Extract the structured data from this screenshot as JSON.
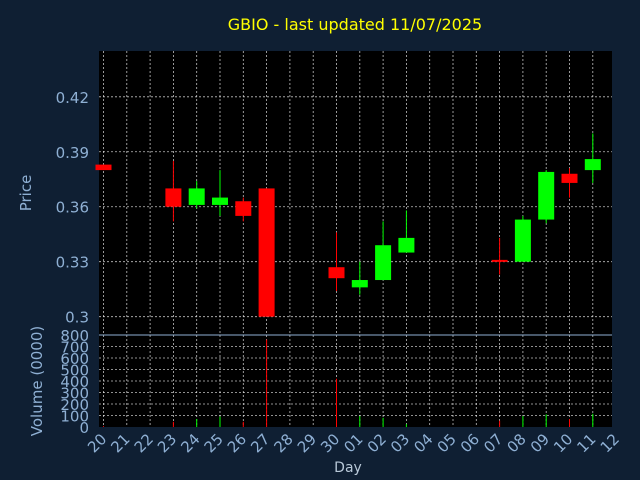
{
  "chart_data": {
    "type": "candlestick",
    "title": "GBIO - last updated 11/07/2025",
    "xlabel": "Day",
    "price_panel": {
      "ylabel": "Price",
      "ylim": [
        0.29,
        0.445
      ],
      "yticks": [
        "0.42",
        "0.39",
        "0.36",
        "0.33",
        "0.3"
      ],
      "ytick_values": [
        0.42,
        0.39,
        0.36,
        0.33,
        0.3
      ],
      "grid": true
    },
    "volume_panel": {
      "ylabel": "Volume (0000)",
      "ylim": [
        0,
        800
      ],
      "yticks": [
        "800",
        "700",
        "600",
        "500",
        "400",
        "300",
        "200",
        "100",
        "0"
      ],
      "ytick_values": [
        800,
        700,
        600,
        500,
        400,
        300,
        200,
        100,
        0
      ],
      "grid": true
    },
    "x_labels": [
      "20",
      "21",
      "22",
      "23",
      "24",
      "25",
      "26",
      "27",
      "28",
      "29",
      "30",
      "01",
      "02",
      "03",
      "04",
      "05",
      "06",
      "07",
      "08",
      "09",
      "10",
      "11",
      "12"
    ],
    "candles": [
      {
        "day": "20",
        "open": 0.383,
        "high": 0.383,
        "low": 0.38,
        "close": 0.38,
        "volume": 8
      },
      {
        "day": "23",
        "open": 0.37,
        "high": 0.385,
        "low": 0.352,
        "close": 0.36,
        "volume": 45
      },
      {
        "day": "24",
        "open": 0.361,
        "high": 0.374,
        "low": 0.359,
        "close": 0.37,
        "volume": 70
      },
      {
        "day": "25",
        "open": 0.361,
        "high": 0.38,
        "low": 0.355,
        "close": 0.365,
        "volume": 90
      },
      {
        "day": "26",
        "open": 0.363,
        "high": 0.365,
        "low": 0.352,
        "close": 0.355,
        "volume": 45
      },
      {
        "day": "27",
        "open": 0.37,
        "high": 0.37,
        "low": 0.3,
        "close": 0.3,
        "volume": 760
      },
      {
        "day": "30",
        "open": 0.327,
        "high": 0.346,
        "low": 0.314,
        "close": 0.321,
        "volume": 420
      },
      {
        "day": "01",
        "open": 0.316,
        "high": 0.33,
        "low": 0.312,
        "close": 0.32,
        "volume": 95
      },
      {
        "day": "02",
        "open": 0.32,
        "high": 0.352,
        "low": 0.32,
        "close": 0.339,
        "volume": 80
      },
      {
        "day": "03",
        "open": 0.335,
        "high": 0.358,
        "low": 0.335,
        "close": 0.343,
        "volume": 25
      },
      {
        "day": "07",
        "open": 0.331,
        "high": 0.343,
        "low": 0.323,
        "close": 0.33,
        "volume": 55
      },
      {
        "day": "08",
        "open": 0.33,
        "high": 0.355,
        "low": 0.33,
        "close": 0.353,
        "volume": 95
      },
      {
        "day": "09",
        "open": 0.353,
        "high": 0.38,
        "low": 0.351,
        "close": 0.379,
        "volume": 110
      },
      {
        "day": "10",
        "open": 0.378,
        "high": 0.381,
        "low": 0.365,
        "close": 0.373,
        "volume": 70
      },
      {
        "day": "11",
        "open": 0.38,
        "high": 0.4,
        "low": 0.373,
        "close": 0.386,
        "volume": 115
      }
    ],
    "colors": {
      "background": "#0f1f33",
      "plot_background": "#000000",
      "up": "#00ff00",
      "down": "#ff0000",
      "grid": "#ffffff",
      "axis_text": "#8fb0d4",
      "title": "#ffff00",
      "xlabel": "#b8c8d8"
    }
  }
}
